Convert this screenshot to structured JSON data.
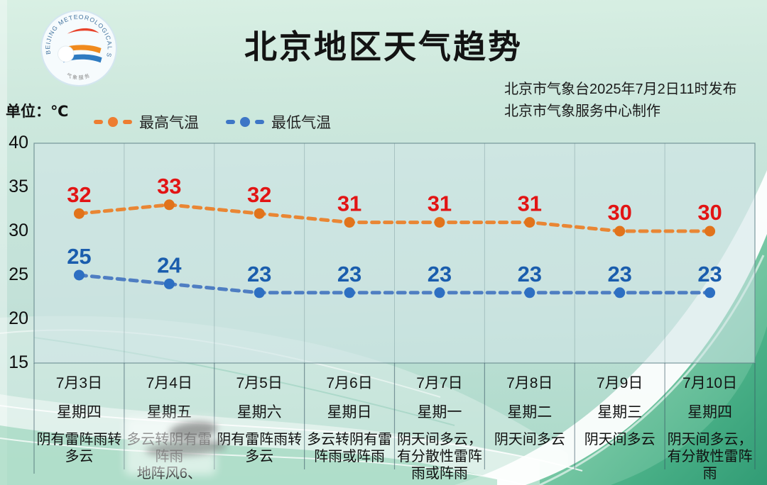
{
  "page": {
    "title": "北京地区天气趋势",
    "issued_line1": "北京市气象台2025年7月2日11时发布",
    "issued_line2": "北京市气象服务中心制作",
    "unit_label": "单位：℃"
  },
  "logo": {
    "ring_text": "BEIJING METEOROLOGICAL SERVICE",
    "bottom_text": "气象服务"
  },
  "legend": [
    {
      "label": "最高气温",
      "color": "#ED7D31"
    },
    {
      "label": "最低气温",
      "color": "#3E76C6"
    }
  ],
  "colors": {
    "high_line": "#E98634",
    "high_dot": "#E1731B",
    "high_value_label": "#E21414",
    "low_line": "#4F7EC2",
    "low_dot": "#2D6FC2",
    "low_value_label": "#1A5DAD"
  },
  "chart_data": {
    "type": "line",
    "unit": "℃",
    "categories": [
      "7月3日",
      "7月4日",
      "7月5日",
      "7月6日",
      "7月7日",
      "7月8日",
      "7月9日",
      "7月10日"
    ],
    "series": [
      {
        "name": "最高气温",
        "values": [
          32,
          33,
          32,
          31,
          31,
          31,
          30,
          30
        ],
        "line_color": "#E98634",
        "dot_color": "#E1731B",
        "label_color": "#E21414",
        "style": "dashed"
      },
      {
        "name": "最低气温",
        "values": [
          25,
          24,
          23,
          23,
          23,
          23,
          23,
          23
        ],
        "line_color": "#4F7EC2",
        "dot_color": "#2D6FC2",
        "label_color": "#1A5DAD",
        "style": "dashed"
      }
    ],
    "ylim": [
      15,
      40
    ],
    "yticks": [
      40,
      35,
      30,
      25,
      20,
      15
    ],
    "grid": "vertical column separators only",
    "legend_position": "top-left above plot",
    "value_labels_shown": true
  },
  "forecast_table": {
    "days": [
      {
        "date": "7月3日",
        "weekday": "星期四",
        "weather_lines": [
          "阴有雷阵雨转",
          "多云"
        ]
      },
      {
        "date": "7月4日",
        "weekday": "星期五",
        "weather_lines": [
          "多云转阴有雷",
          "阵雨",
          "地阵风6、"
        ],
        "blurred": true
      },
      {
        "date": "7月5日",
        "weekday": "星期六",
        "weather_lines": [
          "阴有雷阵雨转",
          "多云"
        ]
      },
      {
        "date": "7月6日",
        "weekday": "星期日",
        "weather_lines": [
          "多云转阴有雷",
          "阵雨或阵雨"
        ]
      },
      {
        "date": "7月7日",
        "weekday": "星期一",
        "weather_lines": [
          "阴天间多云，",
          "有分散性雷阵",
          "雨或阵雨"
        ]
      },
      {
        "date": "7月8日",
        "weekday": "星期二",
        "weather_lines": [
          "阴天间多云"
        ]
      },
      {
        "date": "7月9日",
        "weekday": "星期三",
        "weather_lines": [
          "阴天间多云"
        ]
      },
      {
        "date": "7月10日",
        "weekday": "星期四",
        "weather_lines": [
          "阴天间多云，",
          "有分散性雷阵",
          "雨"
        ]
      }
    ]
  }
}
